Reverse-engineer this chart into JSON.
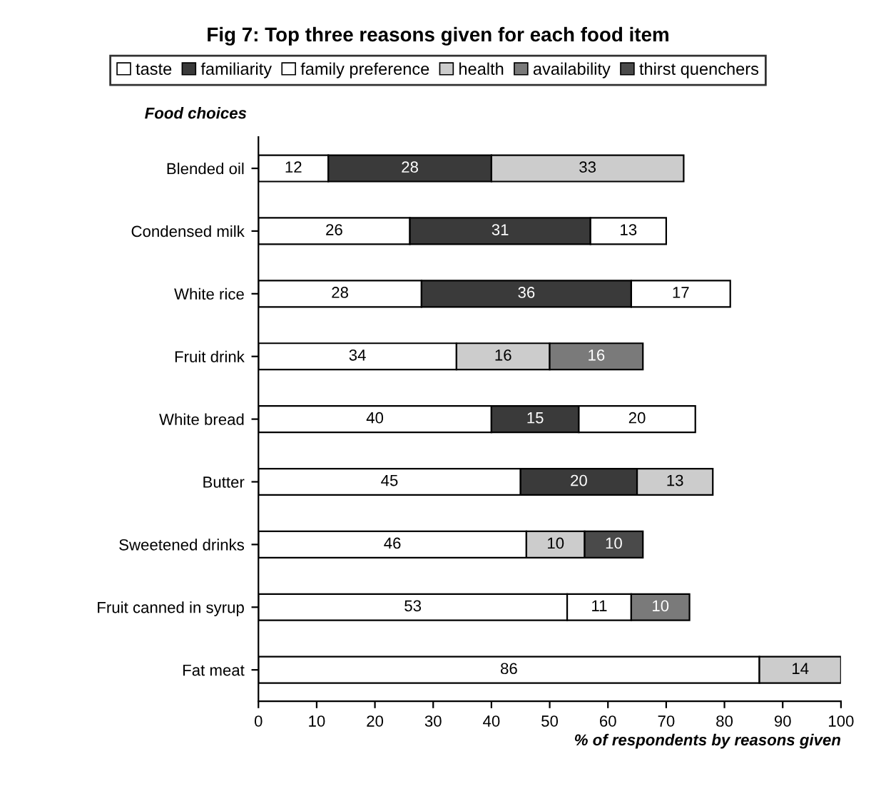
{
  "chart_data": {
    "type": "bar",
    "orientation": "horizontal",
    "stacked": true,
    "title": "Fig 7: Top three reasons given for each food item",
    "ylabel": "Food choices",
    "xlabel": "% of respondents by reasons given",
    "categories": [
      "Blended oil",
      "Condensed milk",
      "White rice",
      "Fruit drink",
      "White bread",
      "Butter",
      "Sweetened drinks",
      "Fruit canned in syrup",
      "Fat meat"
    ],
    "series": [
      {
        "name": "taste",
        "color": "#ffffff",
        "values": [
          12,
          26,
          28,
          34,
          40,
          45,
          46,
          53,
          86
        ]
      },
      {
        "name": "familiarity",
        "color": "#3a3a3a",
        "values": [
          28,
          31,
          36,
          null,
          15,
          20,
          null,
          null,
          null
        ]
      },
      {
        "name": "family preference",
        "color": "#ffffff",
        "values": [
          null,
          13,
          17,
          null,
          20,
          null,
          null,
          11,
          null
        ]
      },
      {
        "name": "health",
        "color": "#cccccc",
        "values": [
          33,
          null,
          null,
          16,
          null,
          13,
          10,
          null,
          14
        ]
      },
      {
        "name": "availability",
        "color": "#7a7a7a",
        "values": [
          null,
          null,
          null,
          16,
          null,
          null,
          null,
          10,
          null
        ]
      },
      {
        "name": "thirst quenchers",
        "color": "#4a4a4a",
        "values": [
          null,
          null,
          null,
          null,
          null,
          null,
          10,
          null,
          null
        ]
      }
    ],
    "xlim": [
      0,
      100
    ],
    "xticks": [
      0,
      10,
      20,
      30,
      40,
      50,
      60,
      70,
      80,
      90,
      100
    ],
    "data_labels": true,
    "legend": "top",
    "grid": false
  }
}
